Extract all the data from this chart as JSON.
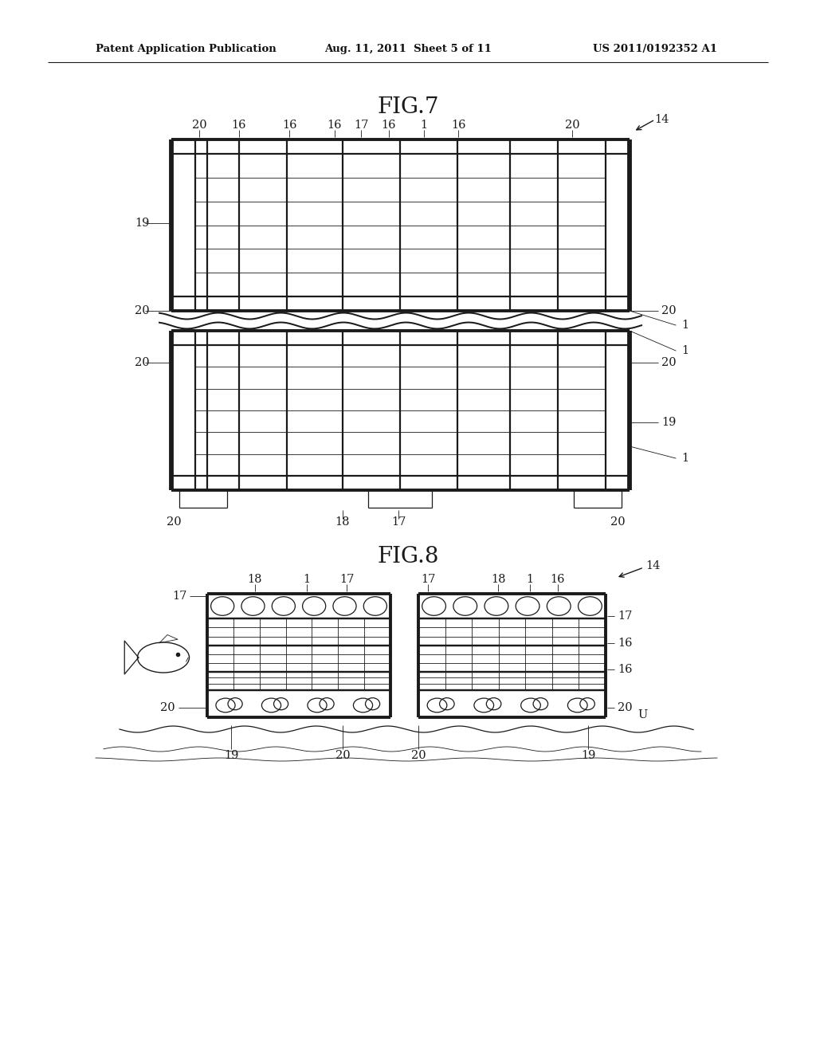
{
  "bg_color": "#ffffff",
  "line_color": "#1a1a1a",
  "header_left": "Patent Application Publication",
  "header_mid": "Aug. 11, 2011  Sheet 5 of 11",
  "header_right": "US 2011/0192352 A1",
  "fig7_title": "FIG.7",
  "fig8_title": "FIG.8",
  "page_width": 1.0,
  "page_height": 1.0
}
